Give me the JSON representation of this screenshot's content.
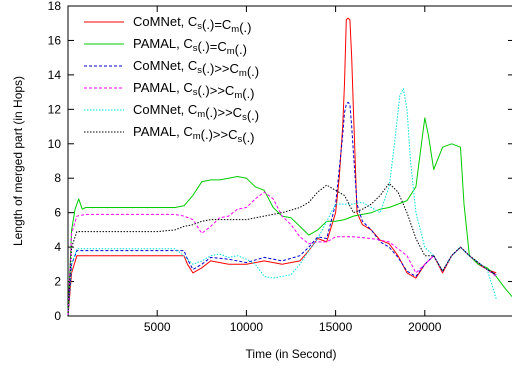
{
  "chart_data": {
    "type": "line",
    "title": "",
    "xlabel": "Time (in Second)",
    "ylabel": "Length of merged part (in Hops)",
    "xlim": [
      0,
      25000
    ],
    "ylim": [
      0,
      18
    ],
    "xticks": [
      5000,
      10000,
      15000,
      20000
    ],
    "yticks": [
      0,
      2,
      4,
      6,
      8,
      10,
      12,
      14,
      16,
      18
    ],
    "grid": false,
    "legend_position": "top-left",
    "series": [
      {
        "name": "CoMNet, C_s(.)=C_m(.)",
        "legend": {
          "a": "CoMNet, C",
          "s1": "s",
          "b": "(.)=C",
          "s2": "m",
          "c": "(.)"
        },
        "color": "#ff0000",
        "dash": "solid",
        "x": [
          0,
          200,
          500,
          1000,
          2000,
          3000,
          4000,
          5000,
          6000,
          6500,
          6700,
          7000,
          7500,
          8000,
          9000,
          10000,
          11000,
          12000,
          13000,
          13500,
          14000,
          14500,
          15000,
          15200,
          15400,
          15500,
          15600,
          15700,
          15800,
          15900,
          16000,
          16200,
          16500,
          17000,
          17500,
          18000,
          18500,
          19000,
          19500,
          20000,
          20500,
          21000,
          21500,
          22000,
          22500,
          23000,
          23500,
          24000
        ],
        "y": [
          0,
          2.5,
          3.5,
          3.5,
          3.5,
          3.5,
          3.5,
          3.5,
          3.5,
          3.5,
          3.0,
          2.5,
          2.8,
          3.2,
          3.0,
          3.0,
          3.2,
          3.0,
          3.2,
          3.8,
          4.5,
          4.3,
          6.0,
          8.0,
          11.0,
          13.5,
          17.2,
          17.3,
          17.2,
          15.0,
          12.0,
          6.0,
          5.3,
          5.0,
          4.4,
          4.2,
          3.5,
          2.5,
          2.2,
          3.0,
          3.5,
          2.5,
          3.5,
          4.0,
          3.5,
          3.0,
          2.7,
          2.5
        ]
      },
      {
        "name": "PAMAL, C_s(.)=C_m(.)",
        "legend": {
          "a": "PAMAL, C",
          "s1": "s",
          "b": "(.)=C",
          "s2": "m",
          "c": "(.)"
        },
        "color": "#00cc00",
        "dash": "solid",
        "x": [
          0,
          200,
          400,
          600,
          800,
          1000,
          1500,
          2000,
          3000,
          4000,
          5000,
          6000,
          6500,
          7000,
          7500,
          8000,
          8500,
          9000,
          9500,
          10000,
          10500,
          11000,
          11500,
          12000,
          12500,
          13000,
          13500,
          14000,
          14500,
          15000,
          15500,
          16000,
          16500,
          17000,
          17500,
          18000,
          18500,
          19000,
          19500,
          20000,
          20200,
          20500,
          21000,
          21500,
          22000,
          22200,
          22500,
          23000,
          23500,
          24000,
          24500,
          25000
        ],
        "y": [
          0,
          5.0,
          6.2,
          6.8,
          6.2,
          6.3,
          6.3,
          6.3,
          6.3,
          6.3,
          6.3,
          6.3,
          6.4,
          7.0,
          7.8,
          7.9,
          7.9,
          8.0,
          8.1,
          8.0,
          7.5,
          7.3,
          6.3,
          5.8,
          5.7,
          5.2,
          4.7,
          5.0,
          5.5,
          5.5,
          5.6,
          5.8,
          5.9,
          6.0,
          6.2,
          6.3,
          6.5,
          6.7,
          7.5,
          11.5,
          10.5,
          8.5,
          9.8,
          10.0,
          9.8,
          6.5,
          3.5,
          3.0,
          2.8,
          2.3,
          1.6,
          1.0
        ]
      },
      {
        "name": "CoMNet, C_s(.)>>C_m(.)",
        "legend": {
          "a": "CoMNet, C",
          "s1": "s",
          "b": "(.)>>C",
          "s2": "m",
          "c": "(.)"
        },
        "color": "#0000cc",
        "dash": "dashed",
        "x": [
          0,
          200,
          500,
          1000,
          2000,
          3000,
          4000,
          5000,
          6000,
          6500,
          6700,
          7000,
          7500,
          8000,
          9000,
          10000,
          11000,
          12000,
          13000,
          13500,
          14000,
          14500,
          15000,
          15200,
          15400,
          15500,
          15600,
          15700,
          15800,
          15900,
          16000,
          16200,
          16500,
          17000,
          17500,
          18000,
          18500,
          19000,
          19500,
          20000,
          20500,
          21000,
          21500,
          22000,
          22500,
          23000,
          23500,
          24000
        ],
        "y": [
          0,
          3.0,
          3.8,
          3.8,
          3.8,
          3.8,
          3.8,
          3.8,
          3.8,
          3.8,
          3.3,
          2.7,
          3.0,
          3.4,
          3.3,
          3.1,
          3.4,
          3.2,
          3.5,
          4.0,
          4.6,
          4.5,
          6.5,
          8.5,
          10.5,
          11.8,
          12.3,
          12.4,
          12.3,
          11.0,
          9.5,
          6.5,
          5.5,
          5.0,
          4.3,
          4.0,
          3.4,
          2.6,
          2.3,
          3.0,
          3.5,
          2.6,
          3.5,
          4.0,
          3.5,
          3.1,
          2.7,
          2.4
        ]
      },
      {
        "name": "PAMAL, C_s(.)>>C_m(.)",
        "legend": {
          "a": "PAMAL, C",
          "s1": "s",
          "b": "(.)>>C",
          "s2": "m",
          "c": "(.)"
        },
        "color": "#ff00ff",
        "dash": "dashed",
        "x": [
          0,
          200,
          500,
          1000,
          2000,
          3000,
          4000,
          5000,
          6000,
          6500,
          7000,
          7500,
          8000,
          8500,
          9000,
          9500,
          10000,
          10500,
          11000,
          11500,
          12000,
          12500,
          13000,
          13500,
          14000,
          14500,
          15000,
          15500,
          16000,
          17000,
          18000,
          19000,
          19500,
          20000,
          20500,
          21000,
          21500,
          22000,
          22500,
          23000,
          23500,
          24000
        ],
        "y": [
          0,
          4.8,
          5.8,
          5.9,
          5.9,
          5.9,
          5.9,
          5.9,
          5.9,
          5.8,
          5.6,
          4.8,
          5.2,
          5.7,
          5.8,
          6.2,
          6.3,
          6.8,
          7.2,
          6.8,
          5.8,
          5.3,
          4.6,
          4.2,
          4.3,
          4.3,
          4.6,
          4.6,
          4.6,
          4.5,
          4.3,
          3.5,
          2.5,
          3.0,
          3.5,
          2.6,
          3.5,
          4.0,
          3.5,
          3.1,
          2.7,
          2.3
        ]
      },
      {
        "name": "CoMNet, C_m(.)>>C_s(.)",
        "legend": {
          "a": "CoMNet, C",
          "s1": "m",
          "b": "(.)>>C",
          "s2": "s",
          "c": "(.)"
        },
        "color": "#00e0e0",
        "dash": "dotted",
        "x": [
          0,
          200,
          500,
          1000,
          2000,
          3000,
          4000,
          5000,
          6000,
          6500,
          7000,
          7500,
          8000,
          8500,
          9000,
          9500,
          10000,
          10500,
          11000,
          11500,
          12000,
          12500,
          13000,
          13500,
          14000,
          14500,
          15000,
          15500,
          16000,
          16500,
          17000,
          17500,
          18000,
          18300,
          18600,
          18800,
          19000,
          19200,
          19500,
          20000,
          20500,
          21000,
          21500,
          22000,
          22500,
          23000,
          23500,
          24000
        ],
        "y": [
          0,
          3.0,
          3.9,
          3.9,
          3.9,
          3.9,
          3.9,
          3.9,
          3.9,
          3.5,
          3.0,
          3.2,
          3.5,
          3.6,
          3.4,
          3.5,
          3.3,
          3.0,
          2.3,
          2.2,
          2.3,
          2.4,
          3.0,
          3.8,
          4.5,
          5.5,
          6.5,
          6.5,
          6.5,
          6.6,
          6.3,
          6.0,
          7.5,
          10.0,
          12.8,
          13.2,
          12.0,
          9.0,
          6.0,
          4.0,
          3.5,
          2.6,
          3.5,
          4.0,
          3.5,
          3.1,
          2.7,
          1.0
        ]
      },
      {
        "name": "PAMAL, C_m(.)>>C_s(.)",
        "legend": {
          "a": "PAMAL, C",
          "s1": "m",
          "b": "(.)>>C",
          "s2": "s",
          "c": "(.)"
        },
        "color": "#000000",
        "dash": "dotted",
        "x": [
          0,
          200,
          500,
          1000,
          2000,
          3000,
          4000,
          5000,
          6000,
          6500,
          7000,
          7500,
          8000,
          9000,
          10000,
          11000,
          12000,
          13000,
          13500,
          14000,
          14500,
          15000,
          15500,
          16000,
          16500,
          17000,
          17500,
          18000,
          18500,
          19000,
          19500,
          20000,
          20500,
          21000,
          21500,
          22000,
          22500,
          23000,
          23500,
          24000
        ],
        "y": [
          0,
          4.0,
          4.9,
          4.9,
          4.9,
          4.9,
          4.9,
          4.9,
          5.0,
          5.2,
          5.3,
          5.5,
          5.6,
          5.6,
          5.6,
          5.8,
          6.0,
          6.3,
          6.6,
          7.2,
          7.6,
          7.3,
          7.0,
          6.0,
          6.2,
          6.5,
          7.0,
          7.7,
          7.2,
          6.0,
          4.5,
          3.5,
          3.5,
          2.6,
          3.5,
          4.0,
          3.5,
          3.1,
          2.7,
          2.4
        ]
      }
    ]
  }
}
